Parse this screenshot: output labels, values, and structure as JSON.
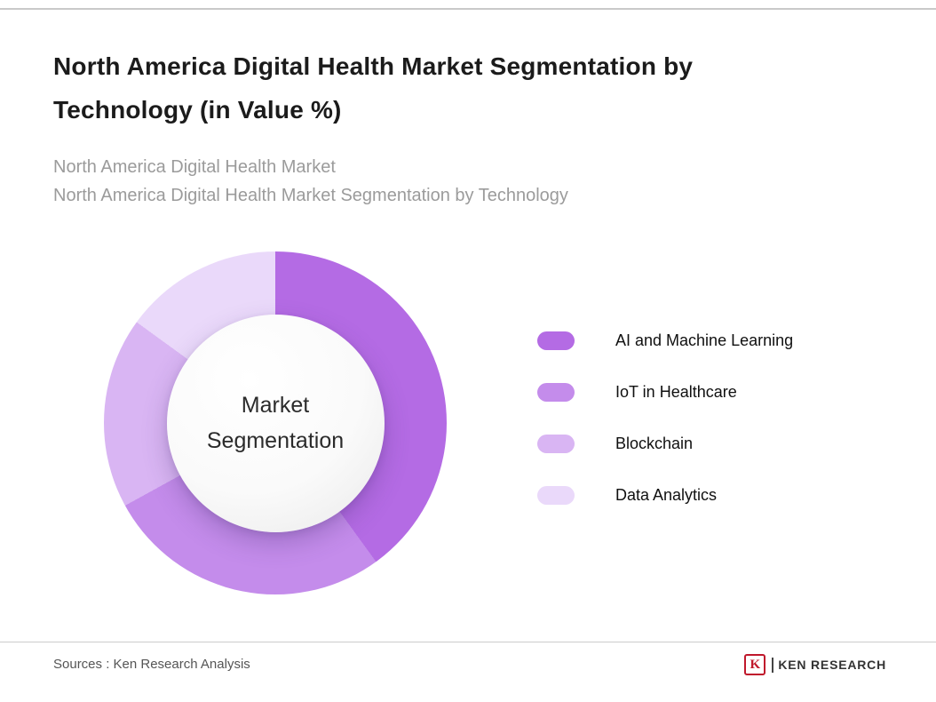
{
  "page": {
    "title_line1": "North America Digital Health Market Segmentation by",
    "title_line2": "Technology (in Value %)",
    "subtitle_line1": "North America Digital Health Market",
    "subtitle_line2": "North America Digital Health Market Segmentation by Technology",
    "source_text": "Sources : Ken Research Analysis",
    "logo": {
      "letter": "K",
      "brand": "KEN RESEARCH"
    }
  },
  "chart_data": {
    "type": "pie",
    "variant": "donut",
    "title": "North America Digital Health Market Segmentation by Technology (in Value %)",
    "center_label": "Market Segmentation",
    "values_labeled_on_chart": false,
    "values_are_estimated_from_arc_angles": true,
    "legend_position": "right",
    "start_angle_deg": 0,
    "direction": "clockwise",
    "segments": [
      {
        "label": "AI and Machine Learning",
        "value": 40,
        "color": "#b46be4"
      },
      {
        "label": "IoT in Healthcare",
        "value": 27,
        "color": "#c48ceb"
      },
      {
        "label": "Blockchain",
        "value": 18,
        "color": "#d9b5f3"
      },
      {
        "label": "Data Analytics",
        "value": 15,
        "color": "#ead9fa"
      }
    ]
  },
  "colors": {
    "title_text": "#1b1b1b",
    "subtitle_text": "#9b9b9b",
    "divider": "#cccccc",
    "logo_red": "#c0182c"
  }
}
